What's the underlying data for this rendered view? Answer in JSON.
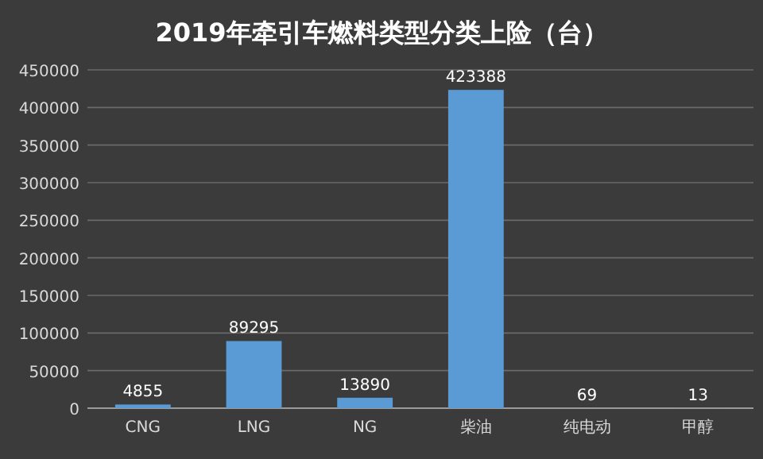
{
  "chart_data": {
    "type": "bar",
    "title": "2019年牵引车燃料类型分类上险（台）",
    "categories": [
      "CNG",
      "LNG",
      "NG",
      "柴油",
      "纯电动",
      "甲醇"
    ],
    "values": [
      4855,
      89295,
      13890,
      423388,
      69,
      13
    ],
    "color": "#5b9bd5",
    "ylim": [
      0,
      450000
    ],
    "yticks": [
      0,
      50000,
      100000,
      150000,
      200000,
      250000,
      300000,
      350000,
      400000,
      450000
    ],
    "grid": "y",
    "data_labels": true
  }
}
